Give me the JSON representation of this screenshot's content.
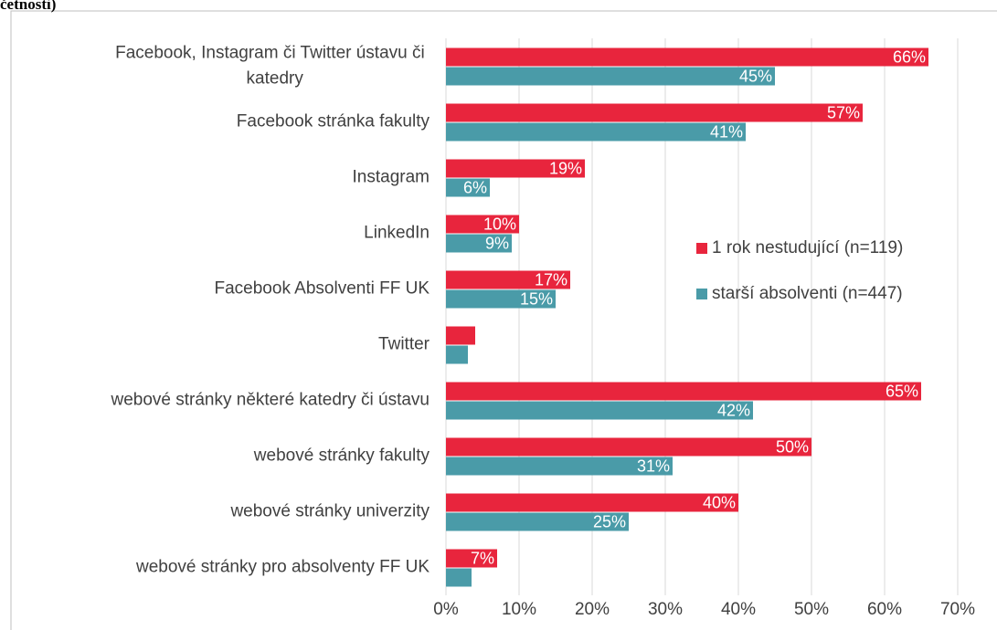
{
  "chart_data": {
    "type": "bar",
    "orientation": "horizontal",
    "title": "četnosti)",
    "categories": [
      "Facebook, Instagram či Twitter ústavu či katedry",
      "Facebook stránka fakulty",
      "Instagram",
      "LinkedIn",
      "Facebook Absolventi FF UK",
      "Twitter",
      "webové stránky některé katedry či ústavu",
      "webové stránky fakulty",
      "webové stránky univerzity",
      "webové stránky pro absolventy FF UK"
    ],
    "series": [
      {
        "name": "1 rok nestudující (n=119)",
        "color": "#e8253d",
        "values": [
          66,
          57,
          19,
          10,
          17,
          4,
          65,
          50,
          40,
          7
        ],
        "value_labels": [
          "66%",
          "57%",
          "19%",
          "10%",
          "17%",
          null,
          "65%",
          "50%",
          "40%",
          "7%"
        ]
      },
      {
        "name": "starší absolventi (n=447)",
        "color": "#4a9ba8",
        "values": [
          45,
          41,
          6,
          9,
          15,
          3,
          42,
          31,
          25,
          3.5
        ],
        "value_labels": [
          "45%",
          "41%",
          "6%",
          "9%",
          "15%",
          null,
          "42%",
          "31%",
          "25%",
          null
        ]
      }
    ],
    "xlim": [
      0,
      70
    ],
    "xticks": [
      {
        "value": 0,
        "label": "0%"
      },
      {
        "value": 10,
        "label": "10%"
      },
      {
        "value": 20,
        "label": "20%"
      },
      {
        "value": 30,
        "label": "30%"
      },
      {
        "value": 40,
        "label": "40%"
      },
      {
        "value": 50,
        "label": "50%"
      },
      {
        "value": 60,
        "label": "60%"
      },
      {
        "value": 70,
        "label": "70%"
      }
    ],
    "grid": true,
    "legend": "right"
  }
}
